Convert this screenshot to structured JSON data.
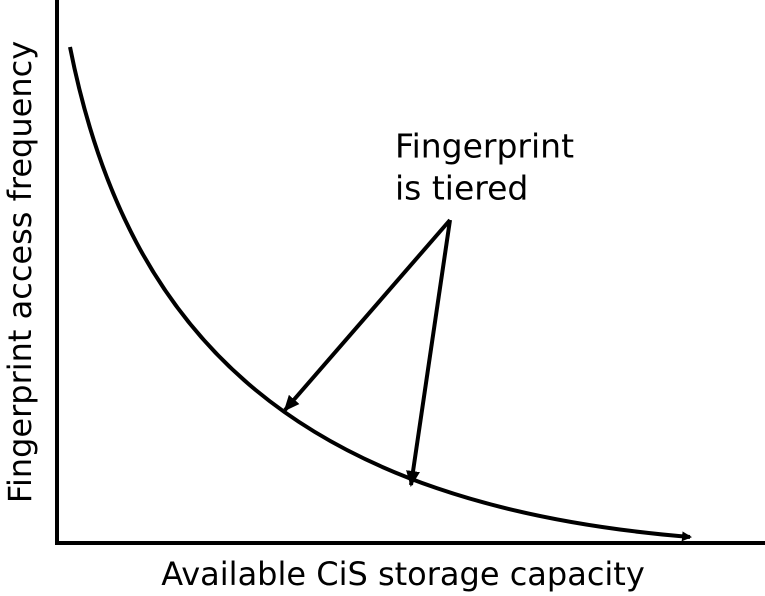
{
  "axes": {
    "x_label": "Available CiS storage capacity",
    "y_label": "Fingerprint access frequency"
  },
  "annotation": {
    "lines": [
      "Fingerprint",
      "is tiered"
    ]
  }
}
